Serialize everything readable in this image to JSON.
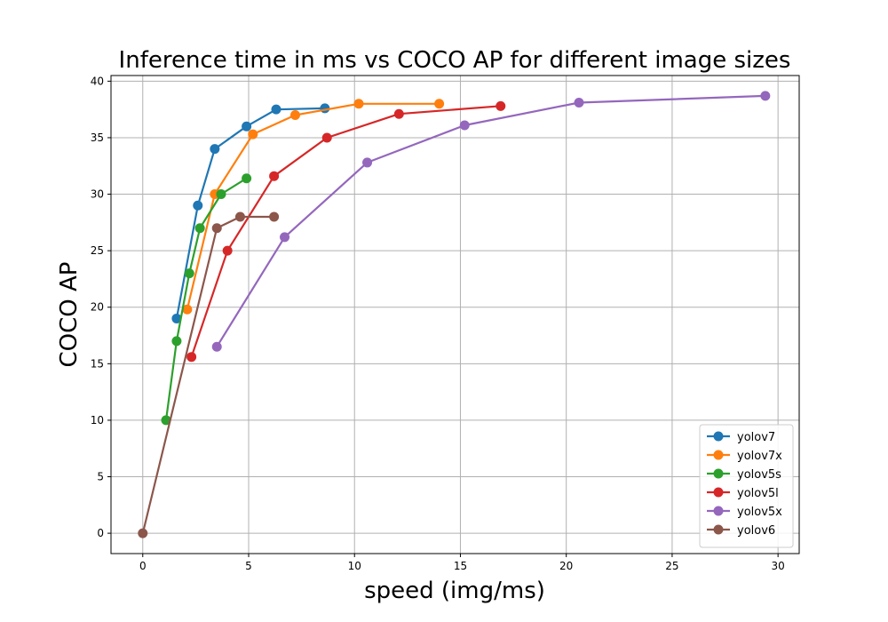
{
  "chart_data": {
    "type": "line",
    "title": "Inference time in ms vs COCO AP for different image sizes",
    "xlabel": "speed (img/ms)",
    "ylabel": "COCO AP",
    "xlim": [
      -1.5,
      31
    ],
    "ylim": [
      -1.8,
      40.5
    ],
    "xticks": [
      0,
      5,
      10,
      15,
      20,
      25,
      30
    ],
    "yticks": [
      0,
      5,
      10,
      15,
      20,
      25,
      30,
      35,
      40
    ],
    "grid": true,
    "legend_position": "lower-right",
    "series": [
      {
        "name": "yolov7",
        "color": "#1f77b4",
        "x": [
          1.6,
          2.6,
          3.4,
          4.9,
          6.3,
          8.6
        ],
        "y": [
          19.0,
          29.0,
          34.0,
          36.0,
          37.5,
          37.6
        ]
      },
      {
        "name": "yolov7x",
        "color": "#ff7f0e",
        "x": [
          2.1,
          3.4,
          5.2,
          7.2,
          10.2,
          14.0
        ],
        "y": [
          19.8,
          30.0,
          35.3,
          37.0,
          38.0,
          38.0
        ]
      },
      {
        "name": "yolov5s",
        "color": "#2ca02c",
        "x": [
          1.1,
          1.6,
          2.2,
          2.7,
          3.7,
          4.9
        ],
        "y": [
          10.0,
          17.0,
          23.0,
          27.0,
          30.0,
          31.4
        ]
      },
      {
        "name": "yolov5l",
        "color": "#d62728",
        "x": [
          2.3,
          4.0,
          6.2,
          8.7,
          12.1,
          16.9
        ],
        "y": [
          15.6,
          25.0,
          31.6,
          35.0,
          37.1,
          37.8
        ]
      },
      {
        "name": "yolov5x",
        "color": "#9467bd",
        "x": [
          3.5,
          6.7,
          10.6,
          15.2,
          20.6,
          29.4
        ],
        "y": [
          16.5,
          26.2,
          32.8,
          36.1,
          38.1,
          38.7
        ]
      },
      {
        "name": "yolov6",
        "color": "#8c564b",
        "x": [
          0.0,
          3.5,
          4.6,
          6.2
        ],
        "y": [
          0.0,
          27.0,
          28.0,
          28.0
        ]
      }
    ]
  }
}
